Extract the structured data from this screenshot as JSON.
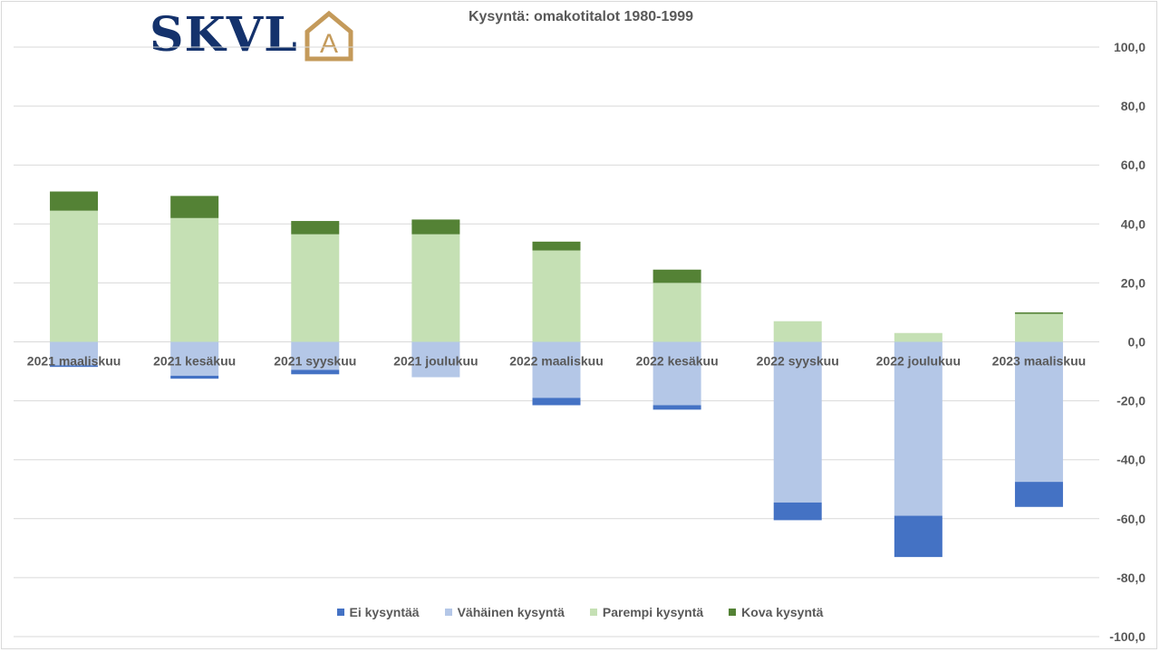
{
  "brand": {
    "logo_text": "SKVL",
    "logo_mark_letter": "A",
    "logo_color": "#14326c",
    "logo_mark_color": "#c49a5a"
  },
  "chart_data": {
    "type": "bar",
    "stacked": true,
    "title": "Kysyntä: omakotitalot 1980-1999",
    "categories": [
      "2021 maaliskuu",
      "2021 kesäkuu",
      "2021 syyskuu",
      "2021 joulukuu",
      "2022 maaliskuu",
      "2022 kesäkuu",
      "2022 syyskuu",
      "2022 joulukuu",
      "2023 maaliskuu"
    ],
    "series": [
      {
        "name": "Ei kysyntää",
        "color": "#4472c4",
        "values": [
          -0.5,
          -1.0,
          -1.5,
          0,
          -2.5,
          -1.5,
          -6.0,
          -14.0,
          -8.5
        ]
      },
      {
        "name": "Vähäinen kysyntä",
        "color": "#b4c7e7",
        "values": [
          -8.0,
          -11.5,
          -9.5,
          -12.0,
          -19.0,
          -21.5,
          -54.5,
          -59.0,
          -47.5
        ]
      },
      {
        "name": "Parempi kysyntä",
        "color": "#c5e0b4",
        "values": [
          44.5,
          42.0,
          36.5,
          36.5,
          31.0,
          20.0,
          7.0,
          3.0,
          9.5
        ]
      },
      {
        "name": "Kova kysyntä",
        "color": "#548235",
        "values": [
          6.5,
          7.5,
          4.5,
          5.0,
          3.0,
          4.5,
          0,
          0,
          0.5
        ]
      }
    ],
    "ylim": [
      -100,
      100
    ],
    "yticks": [
      "100,0",
      "80,0",
      "60,0",
      "40,0",
      "20,0",
      "0,0",
      "-20,0",
      "-40,0",
      "-60,0",
      "-80,0",
      "-100,0"
    ],
    "y_axis_position": "right",
    "grid": true,
    "legend_position": "bottom"
  }
}
